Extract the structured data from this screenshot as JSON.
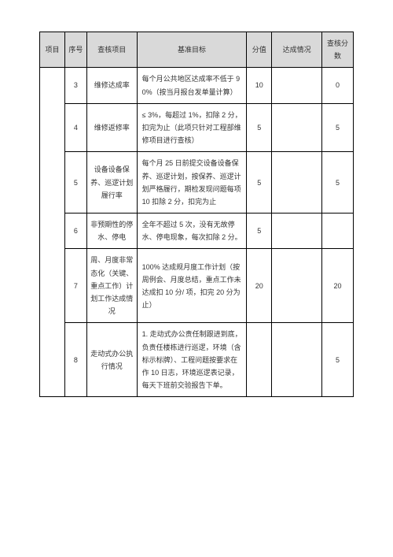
{
  "header": {
    "c1": "项目",
    "c2": "序号",
    "c3": "查核项目",
    "c4": "基准目标",
    "c5": "分值",
    "c6": "达成情况",
    "c7": "查核分数"
  },
  "rows": [
    {
      "num": "3",
      "item": "维修达成率",
      "target": "每个月公共地区达成率不低于 9 0%（按当月报台发单量计算）",
      "score": "10",
      "status": "",
      "check": "0"
    },
    {
      "num": "4",
      "item": "维修返修率",
      "target": "≤ 3%，每超过 1%，扣除 2 分，扣完为止（此项只针对工程部维修项目进行查核）",
      "score": "5",
      "status": "",
      "check": "5"
    },
    {
      "num": "5",
      "item": "设备设备保养、巡逻计划履行率",
      "target": "每个月 25 日前提交设备设备保养、巡逻计划，按保养、巡逻计划严格履行，期检发现问题每项 10 扣除 2 分，扣完为止",
      "score": "5",
      "status": "",
      "check": "5"
    },
    {
      "num": "6",
      "item": "非预期性的停水、停电",
      "target": "全年不超过 5 次，没有无故停水、停电现象，每次扣除 2 分。",
      "score": "5",
      "status": "",
      "check": ""
    },
    {
      "num": "7",
      "item": "周、月度非常态化（关键、重点工作）计划工作达成情况",
      "target": "100% 达成规月度工作计划（按周例会、月度总结，重点工作未达成扣 10 分/ 项，扣完 20 分为止）",
      "score": "20",
      "status": "",
      "check": "20"
    },
    {
      "num": "8",
      "item": "走动式办公执行情况",
      "target": "1. 走动式办公责任制跟进到底，负责任楼栋进行巡逻，环境（含标示标牌）、工程问题按要求在作 10 日志，环境巡逻表记录，每天下班前交验报告下单。",
      "score": "",
      "status": "",
      "check": "5"
    }
  ]
}
